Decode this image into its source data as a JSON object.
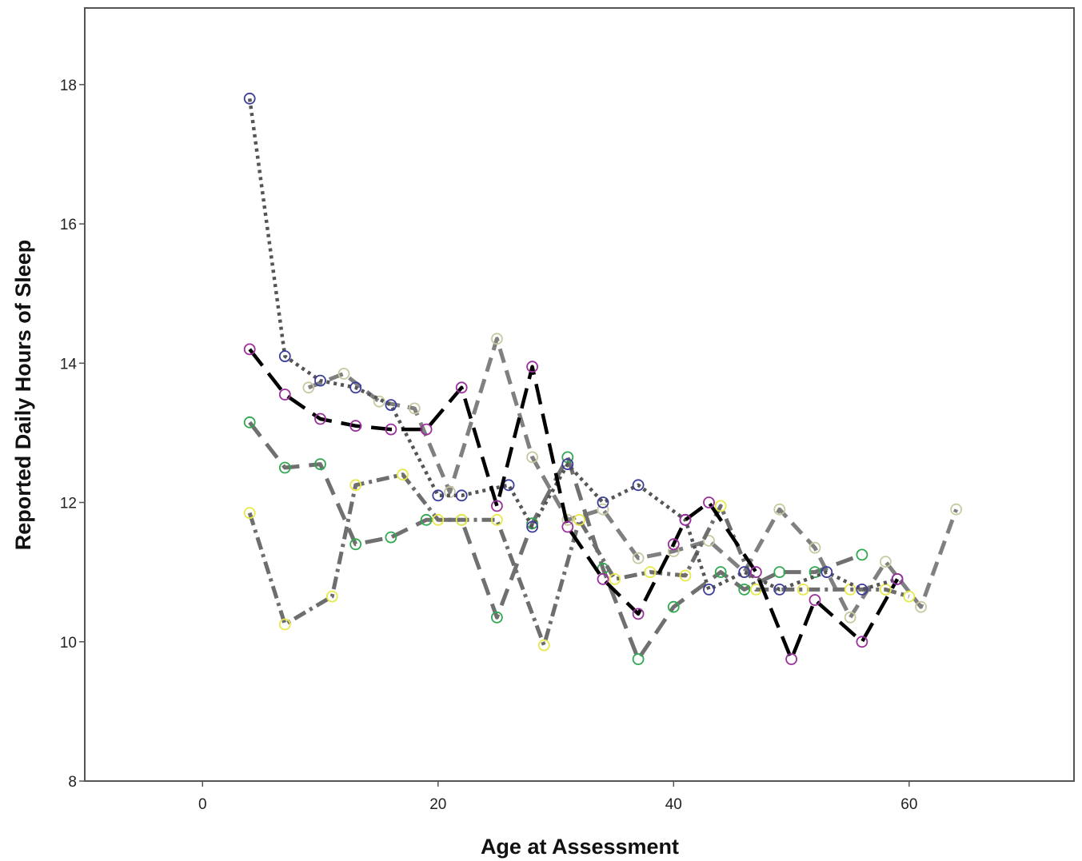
{
  "chart_data": {
    "type": "line",
    "title": "",
    "xlabel": "Age at Assessment",
    "ylabel": "Reported Daily Hours of Sleep",
    "xlim": [
      -10,
      74
    ],
    "ylim": [
      8,
      19.1
    ],
    "xticks": [
      0,
      20,
      40,
      60
    ],
    "yticks": [
      8,
      10,
      12,
      14,
      16,
      18
    ],
    "grid": false,
    "legend": "none",
    "series": [
      {
        "line_color": "#000000",
        "dash": "26,12",
        "line_width": 4.5,
        "marker_color": "#9b2f9b",
        "points": [
          [
            4,
            14.2
          ],
          [
            7,
            13.55
          ],
          [
            10,
            13.2
          ],
          [
            13,
            13.1
          ],
          [
            16,
            13.05
          ],
          [
            19,
            13.05
          ],
          [
            22,
            13.65
          ],
          [
            25,
            11.95
          ],
          [
            28,
            13.95
          ],
          [
            31,
            11.65
          ],
          [
            34,
            10.9
          ],
          [
            37,
            10.4
          ],
          [
            40,
            11.4
          ],
          [
            41,
            11.75
          ],
          [
            43,
            12.0
          ],
          [
            47,
            11.0
          ],
          [
            50,
            9.75
          ],
          [
            52,
            10.6
          ],
          [
            56,
            10.0
          ],
          [
            59,
            10.9
          ]
        ]
      },
      {
        "line_color": "#555555",
        "dash": "4,5",
        "line_width": 4.5,
        "marker_color": "#3c3c9b",
        "points": [
          [
            4,
            17.8
          ],
          [
            7,
            14.1
          ],
          [
            10,
            13.75
          ],
          [
            13,
            13.65
          ],
          [
            16,
            13.4
          ],
          [
            20,
            12.1
          ],
          [
            22,
            12.1
          ],
          [
            26,
            12.25
          ],
          [
            28,
            11.65
          ],
          [
            31,
            12.55
          ],
          [
            34,
            12.0
          ],
          [
            37,
            12.25
          ],
          [
            41,
            11.75
          ],
          [
            43,
            10.75
          ],
          [
            46,
            11.0
          ],
          [
            49,
            10.75
          ],
          [
            53,
            11.0
          ],
          [
            56,
            10.75
          ],
          [
            59,
            10.9
          ]
        ]
      },
      {
        "line_color": "#707070",
        "dash": "22,12",
        "line_width": 5,
        "marker_color": "#2fa84f",
        "points": [
          [
            4,
            13.15
          ],
          [
            7,
            12.5
          ],
          [
            10,
            12.55
          ],
          [
            13,
            11.4
          ],
          [
            16,
            11.5
          ],
          [
            19,
            11.75
          ],
          [
            22,
            11.75
          ],
          [
            25,
            10.35
          ],
          [
            28,
            11.7
          ],
          [
            31,
            12.65
          ],
          [
            34,
            11.05
          ],
          [
            37,
            9.75
          ],
          [
            40,
            10.5
          ],
          [
            44,
            11.0
          ],
          [
            46,
            10.75
          ],
          [
            49,
            11.0
          ],
          [
            52,
            11.0
          ],
          [
            56,
            11.25
          ]
        ]
      },
      {
        "line_color": "#808080",
        "dash": "18,10",
        "line_width": 5,
        "marker_color": "#c8c8a0",
        "points": [
          [
            9,
            13.65
          ],
          [
            12,
            13.85
          ],
          [
            15,
            13.45
          ],
          [
            18,
            13.35
          ],
          [
            21,
            12.15
          ],
          [
            25,
            14.35
          ],
          [
            28,
            12.65
          ],
          [
            31,
            11.75
          ],
          [
            34,
            11.9
          ],
          [
            37,
            11.2
          ],
          [
            40,
            11.3
          ],
          [
            43,
            11.45
          ],
          [
            46,
            11.0
          ],
          [
            49,
            11.9
          ],
          [
            52,
            11.35
          ],
          [
            55,
            10.35
          ],
          [
            58,
            11.15
          ],
          [
            61,
            10.5
          ],
          [
            64,
            11.9
          ]
        ]
      },
      {
        "line_color": "#6e6e6e",
        "dash": "16,6,4,6",
        "line_width": 5,
        "marker_color": "#e8e84a",
        "points": [
          [
            4,
            11.85
          ],
          [
            7,
            10.25
          ],
          [
            11,
            10.65
          ],
          [
            13,
            12.25
          ],
          [
            17,
            12.4
          ],
          [
            20,
            11.75
          ],
          [
            22,
            11.75
          ],
          [
            25,
            11.75
          ],
          [
            29,
            9.95
          ],
          [
            32,
            11.75
          ],
          [
            35,
            10.9
          ],
          [
            38,
            11.0
          ],
          [
            41,
            10.95
          ],
          [
            44,
            11.95
          ],
          [
            47,
            10.75
          ],
          [
            51,
            10.75
          ],
          [
            55,
            10.75
          ],
          [
            58,
            10.75
          ],
          [
            60,
            10.65
          ]
        ]
      }
    ]
  }
}
